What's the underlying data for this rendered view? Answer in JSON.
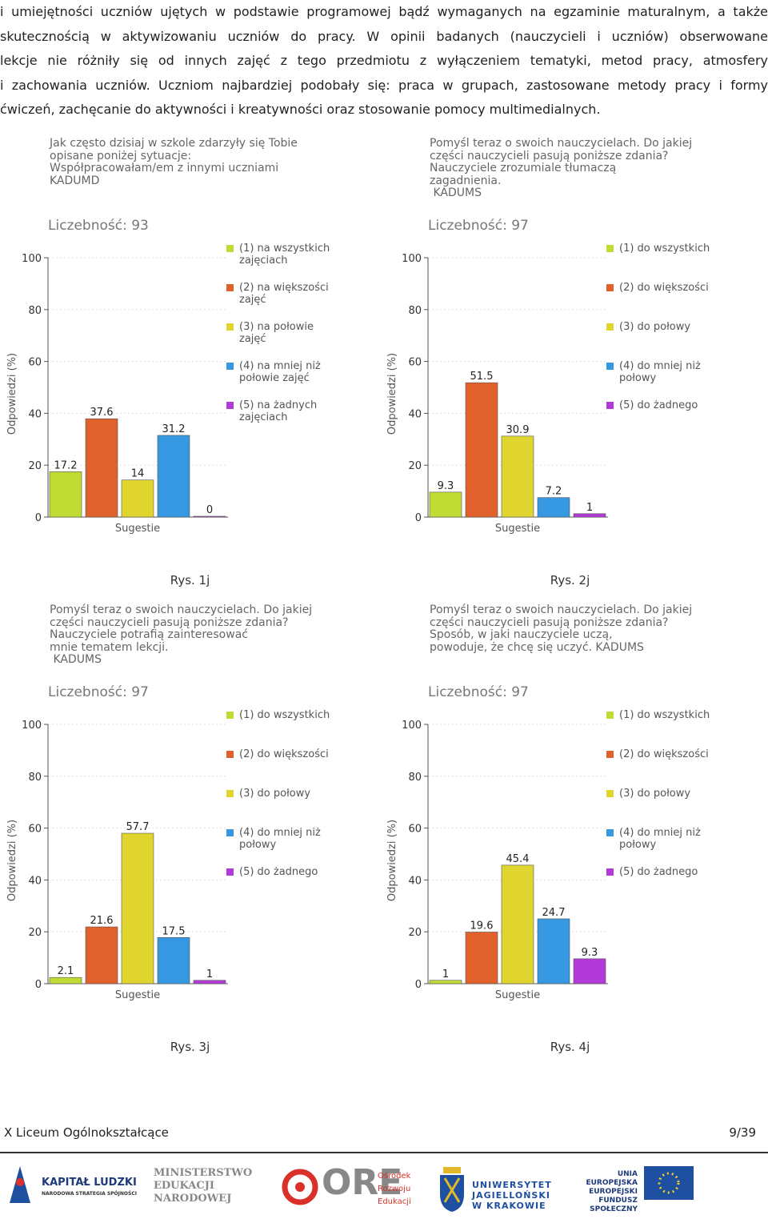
{
  "paragraph_lines": [
    "i umiejętności uczniów ujętych w podstawie programowej bądź wymaganych na egzaminie maturalnym, a także",
    "skutecznością w aktywizowaniu uczniów do pracy. W opinii badanych (nauczycieli i uczniów) obserwowane",
    "lekcje nie różniły się od innych zajęć z tego przedmiotu z wyłączeniem tematyki, metod pracy, atmosfery",
    "i zachowania uczniów. Uczniom najbardziej podobały się: praca w grupach, zastosowane metody pracy i formy",
    "ćwiczeń, zachęcanie do aktywności i kreatywności oraz stosowanie pomocy multimedialnych."
  ],
  "chart_data": [
    {
      "type": "bar",
      "title_lines": [
        "Jak często dzisiaj w szkole zdarzyły się Tobie",
        "opisane poniżej sytuacje:",
        "Współpracowałam/em z innymi uczniami",
        "KADUMD"
      ],
      "count": "Liczebność: 93",
      "y_label": "Odpowiedzi (%)",
      "x_label": "Sugestie",
      "caption": "Rys. 1j",
      "categories": [
        "(1) na wszystkich zajęciach",
        "(2) na większości zajęć",
        "(3) na połowie zajęć",
        "(4) na mniej niż połowie zajęć",
        "(5) na żadnych zajęciach"
      ],
      "values": [
        17.2,
        37.6,
        14,
        31.2,
        0
      ],
      "colors": [
        "#c0db34",
        "#e0612c",
        "#e0d42f",
        "#3598e0",
        "#b13ad8"
      ],
      "ylim": [
        0,
        100
      ],
      "yticks": [
        0,
        20,
        40,
        60,
        80,
        100
      ],
      "grid": true
    },
    {
      "type": "bar",
      "title_lines": [
        "Pomyśl teraz o swoich nauczycielach. Do jakiej",
        "części nauczycieli pasują poniższe zdania?",
        "Nauczyciele zrozumiale tłumaczą",
        "zagadnienia.",
        " KADUMS"
      ],
      "count": "Liczebność: 97",
      "y_label": "Odpowiedzi (%)",
      "x_label": "Sugestie",
      "caption": "Rys. 2j",
      "categories": [
        "(1) do wszystkich",
        "(2) do większości",
        "(3) do połowy",
        "(4) do mniej niż połowy",
        "(5) do żadnego"
      ],
      "values": [
        9.3,
        51.5,
        30.9,
        7.2,
        1
      ],
      "colors": [
        "#c0db34",
        "#e0612c",
        "#e0d42f",
        "#3598e0",
        "#b13ad8"
      ],
      "ylim": [
        0,
        100
      ],
      "yticks": [
        0,
        20,
        40,
        60,
        80,
        100
      ],
      "grid": true
    },
    {
      "type": "bar",
      "title_lines": [
        "Pomyśl teraz o swoich nauczycielach. Do jakiej",
        "części nauczycieli pasują poniższe zdania?",
        "Nauczyciele potrafią zainteresować",
        "mnie tematem lekcji.",
        " KADUMS"
      ],
      "count": "Liczebność: 97",
      "y_label": "Odpowiedzi (%)",
      "x_label": "Sugestie",
      "caption": "Rys. 3j",
      "categories": [
        "(1) do wszystkich",
        "(2) do większości",
        "(3) do połowy",
        "(4) do mniej niż połowy",
        "(5) do żadnego"
      ],
      "values": [
        2.1,
        21.6,
        57.7,
        17.5,
        1
      ],
      "colors": [
        "#c0db34",
        "#e0612c",
        "#e0d42f",
        "#3598e0",
        "#b13ad8"
      ],
      "ylim": [
        0,
        100
      ],
      "yticks": [
        0,
        20,
        40,
        60,
        80,
        100
      ],
      "grid": true
    },
    {
      "type": "bar",
      "title_lines": [
        "Pomyśl teraz o swoich nauczycielach. Do jakiej",
        "części nauczycieli pasują poniższe zdania?",
        "Sposób, w jaki nauczyciele uczą,",
        "powoduje, że chcę się uczyć. KADUMS"
      ],
      "count": "Liczebność: 97",
      "y_label": "Odpowiedzi (%)",
      "x_label": "Sugestie",
      "caption": "Rys. 4j",
      "categories": [
        "(1) do wszystkich",
        "(2) do większości",
        "(3) do połowy",
        "(4) do mniej niż połowy",
        "(5) do żadnego"
      ],
      "values": [
        1,
        19.6,
        45.4,
        24.7,
        9.3
      ],
      "colors": [
        "#c0db34",
        "#e0612c",
        "#e0d42f",
        "#3598e0",
        "#b13ad8"
      ],
      "ylim": [
        0,
        100
      ],
      "yticks": [
        0,
        20,
        40,
        60,
        80,
        100
      ],
      "grid": true
    }
  ],
  "footer": {
    "school": "X Liceum Ogólnokształcące",
    "page": "9/39"
  },
  "logos": {
    "kl_title": "KAPITAŁ LUDZKI",
    "kl_sub": "NARODOWA STRATEGIA SPÓJNOŚCI",
    "men": [
      "MINISTERSTWO",
      "EDUKACJI",
      "NARODOWEJ"
    ],
    "ore": "ORE",
    "ore_sub": [
      "Ośrodek",
      "Rozwoju",
      "Edukacji"
    ],
    "uj": [
      "UNIWERSYTET",
      "JAGIELLOŃSKI",
      "W KRAKOWIE"
    ],
    "ue": [
      "UNIA EUROPEJSKA",
      "EUROPEJSKI",
      "FUNDUSZ SPOŁECZNY"
    ]
  }
}
